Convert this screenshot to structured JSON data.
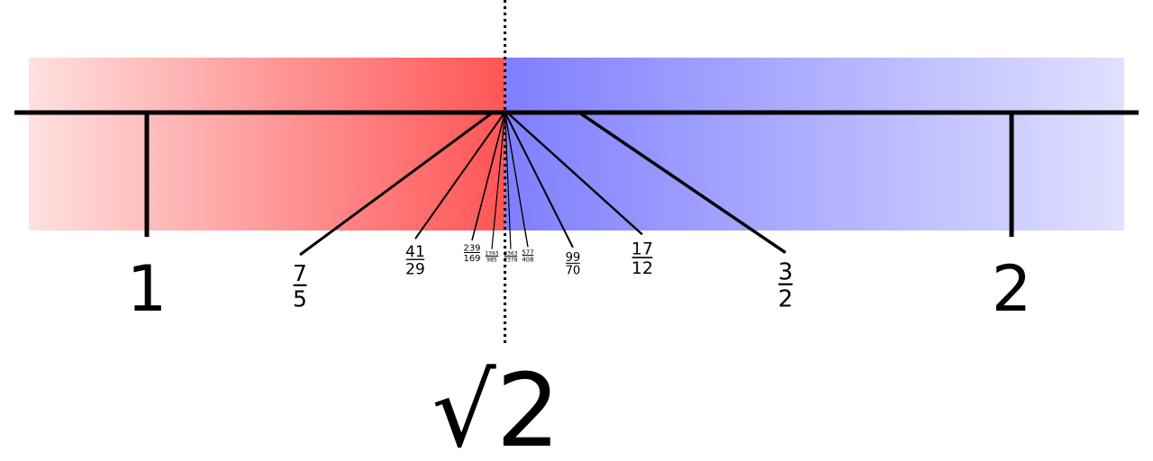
{
  "colors": {
    "below": "#ff5555",
    "below_light": "#ffe0e0",
    "above": "#7f7fff",
    "above_light": "#e0e0ff",
    "ink": "#000000"
  },
  "axis": {
    "min": 1,
    "max": 2,
    "major_labels": [
      "1",
      "2"
    ]
  },
  "target": {
    "value": 1.41421356,
    "label": "√2"
  },
  "approximants": [
    {
      "num": "7",
      "den": "5",
      "value": 1.4
    },
    {
      "num": "41",
      "den": "29",
      "value": 1.41379
    },
    {
      "num": "239",
      "den": "169",
      "value": 1.4142
    },
    {
      "num": "1393",
      "den": "985",
      "value": 1.41421
    },
    {
      "num": "3363",
      "den": "2378",
      "value": 1.414214
    },
    {
      "num": "577",
      "den": "408",
      "value": 1.41422
    },
    {
      "num": "99",
      "den": "70",
      "value": 1.41429
    },
    {
      "num": "17",
      "den": "12",
      "value": 1.41667
    },
    {
      "num": "3",
      "den": "2",
      "value": 1.5
    }
  ]
}
